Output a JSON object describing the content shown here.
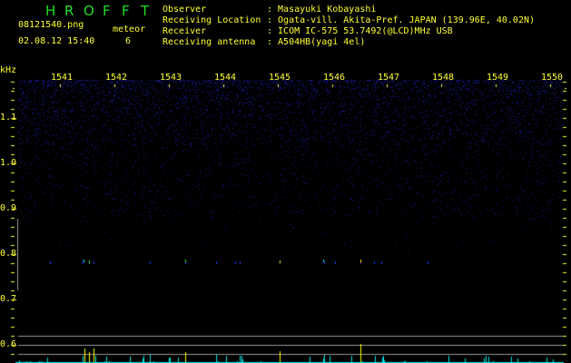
{
  "app_title": "HROFFT",
  "file_name": "08121540.png",
  "timestamp": "02.08.12 15:40",
  "meteor_label": "meteor",
  "meteor_count": "6",
  "info": [
    {
      "label": "Observer",
      "value": ": Masayuki Kobayashi"
    },
    {
      "label": "Receiving Location",
      "value": ": Ogata-vill. Akita-Pref. JAPAN (139.96E, 40.02N)"
    },
    {
      "label": "Receiver",
      "value": ": ICOM IC-575 53.7492(@LCD)MHz USB"
    },
    {
      "label": "Receiving antenna",
      "value": ": A504HB(yagi 4el)"
    }
  ],
  "y_unit": "kHz",
  "x_ticks": [
    "1541",
    "1542",
    "1543",
    "1544",
    "1545",
    "1546",
    "1547",
    "1548",
    "1549",
    "1550"
  ],
  "y_ticks": [
    "1.1",
    "1.0",
    "0.9",
    "0.8",
    "0.7",
    "0.6"
  ],
  "colors": {
    "text": "#ffff33",
    "title": "#22dd22",
    "noise": "#1a1a9a",
    "echo_bar": "#00e5e5",
    "meteor_bar": "#ffff00",
    "grid_line": "#999999"
  }
}
